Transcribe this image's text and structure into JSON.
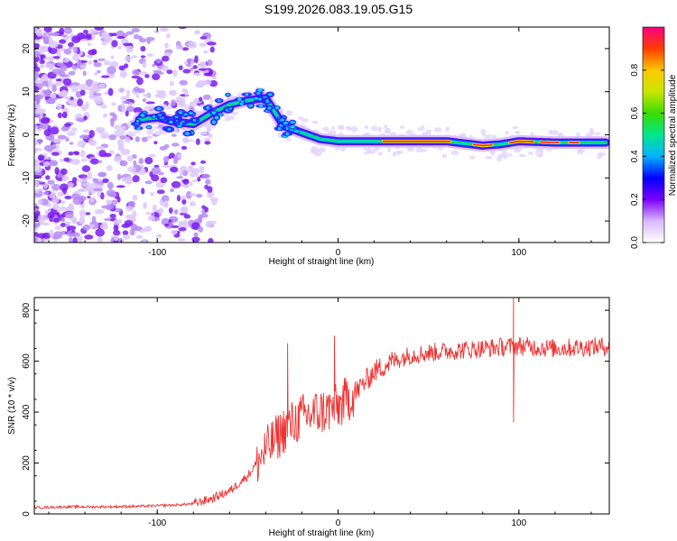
{
  "title": "S199.2026.083.19.05.G15",
  "chart_data": [
    {
      "type": "heatmap",
      "xlabel": "Height of straight line (km)",
      "ylabel": "Frequency (Hz)",
      "xlim": [
        -168,
        150
      ],
      "ylim": [
        -25,
        25
      ],
      "xticks": [
        -100,
        0,
        100
      ],
      "xtick_labels": [
        "-100",
        "0",
        "100"
      ],
      "yticks": [
        -20,
        -10,
        0,
        10,
        20
      ],
      "ytick_labels": [
        "-20",
        "-10",
        "0",
        "10",
        "20"
      ],
      "ridge": {
        "x": [
          -110,
          -100,
          -90,
          -80,
          -70,
          -60,
          -50,
          -40,
          -30,
          -20,
          -10,
          0,
          10,
          20,
          40,
          60,
          80,
          90,
          100,
          120,
          148
        ],
        "y": [
          3.5,
          4.0,
          3.0,
          2.5,
          5.0,
          7.0,
          8.0,
          8.5,
          2.0,
          0.5,
          -1.0,
          -1.5,
          -1.5,
          -1.5,
          -1.5,
          -1.5,
          -2.5,
          -2.2,
          -1.5,
          -1.8,
          -1.8
        ]
      },
      "colorbar": {
        "label": "Normalized spectral amplitude",
        "range": [
          0.0,
          1.0
        ],
        "ticks": [
          0.0,
          0.2,
          0.4,
          0.6,
          0.8
        ],
        "tick_labels": [
          "0.0",
          "0.2",
          "0.4",
          "0.6",
          "0.8"
        ]
      }
    },
    {
      "type": "line",
      "xlabel": "Height of straight line (km)",
      "ylabel": "SNR (10 * v/v)",
      "xlim": [
        -168,
        150
      ],
      "ylim": [
        0,
        850
      ],
      "xticks": [
        -100,
        0,
        100
      ],
      "xtick_labels": [
        "-100",
        "0",
        "100"
      ],
      "yticks": [
        0,
        200,
        400,
        600,
        800
      ],
      "ytick_labels": [
        "0",
        "200",
        "400",
        "600",
        "800"
      ],
      "series": [
        {
          "name": "SNR",
          "color": "#ee3333",
          "x": [
            -168,
            -150,
            -130,
            -110,
            -90,
            -80,
            -70,
            -60,
            -50,
            -40,
            -30,
            -20,
            -10,
            0,
            10,
            20,
            30,
            40,
            60,
            80,
            100,
            120,
            150
          ],
          "y": [
            25,
            28,
            28,
            30,
            35,
            40,
            60,
            90,
            150,
            250,
            330,
            380,
            400,
            420,
            480,
            560,
            600,
            625,
            640,
            650,
            660,
            650,
            660
          ]
        }
      ],
      "annotations": [
        {
          "x": -28,
          "y": 670,
          "label": "spike"
        },
        {
          "x": -2,
          "y": 700,
          "label": "spike"
        },
        {
          "x": 97,
          "y": 850,
          "label": "spike"
        },
        {
          "x": 97,
          "y": 360,
          "label": "dip"
        }
      ]
    }
  ]
}
